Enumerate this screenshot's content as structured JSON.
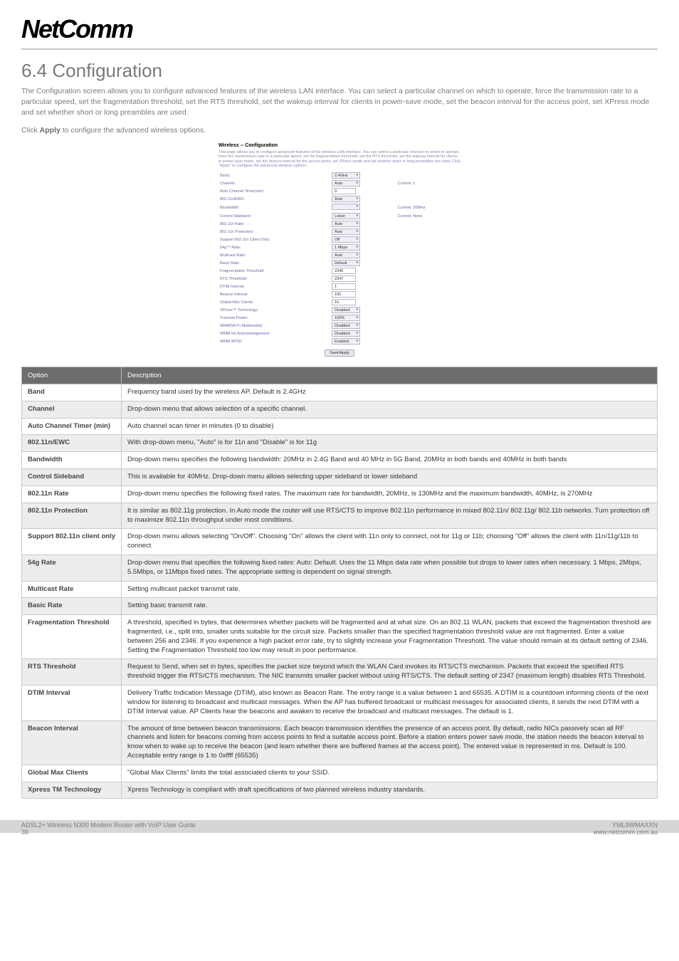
{
  "brand": "NetComm",
  "section_title": "6.4 Configuration",
  "intro": "The Configuration screen allows you to configure advanced features of the wireless LAN interface.   You can select a particular channel on which to operate, force the transmission rate to a particular speed, set the fragmentation threshold, set the RTS threshold, set the wakeup interval for clients in power-save mode, set the beacon interval for the access point, set XPress mode and set whether short or long preambles are used.",
  "click_line_pre": "Click ",
  "click_line_bold": "Apply",
  "click_line_post": " to configure the advanced wireless options.",
  "screenshot": {
    "title": "Wireless -- Configuration",
    "desc": "This page allows you to configure advanced features of the wireless LAN interface. You can select a particular channel on which to operate, force the transmission rate to a particular speed, set the fragmentation threshold, set the RTS threshold, set the wakeup interval for clients in power-save mode, set the beacon interval for the access point, set XPress mode and set whether short or long preambles are used. Click \"Apply\" to configure the advanced wireless options.",
    "rows": [
      {
        "label": "Band:",
        "ctrl": "sel",
        "value": "2.4GHz",
        "extra": ""
      },
      {
        "label": "Channel:",
        "ctrl": "sel",
        "value": "Auto",
        "extra": "Current: 1"
      },
      {
        "label": "Auto Channel Timer(min)",
        "ctrl": "inp",
        "value": "0",
        "extra": ""
      },
      {
        "label": "802.11n/EWC:",
        "ctrl": "sel",
        "value": "Auto",
        "extra": ""
      },
      {
        "label": "Bandwidth:",
        "ctrl": "sel",
        "value": "",
        "extra": "Current: 20MHz"
      },
      {
        "label": "Control Sideband:",
        "ctrl": "sel",
        "value": "Lower",
        "extra": "Current: None"
      },
      {
        "label": "802.11n Rate:",
        "ctrl": "sel",
        "value": "Auto",
        "extra": ""
      },
      {
        "label": "802.11n Protection:",
        "ctrl": "sel",
        "value": "Auto",
        "extra": ""
      },
      {
        "label": "Support 802.11n Client Only:",
        "ctrl": "sel",
        "value": "Off",
        "extra": ""
      },
      {
        "label": "54g™ Rate:",
        "ctrl": "sel",
        "value": "1 Mbps",
        "extra": ""
      },
      {
        "label": "Multicast Rate:",
        "ctrl": "sel",
        "value": "Auto",
        "extra": ""
      },
      {
        "label": "Basic Rate:",
        "ctrl": "sel",
        "value": "Default",
        "extra": ""
      },
      {
        "label": "Fragmentation Threshold:",
        "ctrl": "inp",
        "value": "2346",
        "extra": ""
      },
      {
        "label": "RTS Threshold:",
        "ctrl": "inp",
        "value": "2347",
        "extra": ""
      },
      {
        "label": "DTIM Interval:",
        "ctrl": "inp",
        "value": "1",
        "extra": ""
      },
      {
        "label": "Beacon Interval:",
        "ctrl": "inp",
        "value": "100",
        "extra": ""
      },
      {
        "label": "Global Max Clients:",
        "ctrl": "inp",
        "value": "16",
        "extra": ""
      },
      {
        "label": "XPress™ Technology:",
        "ctrl": "sel",
        "value": "Disabled",
        "extra": ""
      },
      {
        "label": "Transmit Power:",
        "ctrl": "sel",
        "value": "100%",
        "extra": ""
      },
      {
        "label": "WMM(Wi-Fi Multimedia):",
        "ctrl": "sel",
        "value": "Disabled",
        "extra": ""
      },
      {
        "label": "WMM No Acknowledgement:",
        "ctrl": "sel",
        "value": "Disabled",
        "extra": ""
      },
      {
        "label": "WMM APSD:",
        "ctrl": "sel",
        "value": "Enabled",
        "extra": ""
      }
    ],
    "button": "Save/Apply"
  },
  "table": {
    "headers": {
      "opt": "Option",
      "desc": "Description"
    },
    "rows": [
      {
        "opt": "Band",
        "desc": "Frequency band used by the wireless AP. Default is 2.4GHz",
        "alt": false
      },
      {
        "opt": "Channel",
        "desc": "Drop-down menu that allows selection of a specific channel.",
        "alt": true
      },
      {
        "opt": "Auto Channel Timer (min)",
        "desc": "Auto channel scan timer in minutes (0 to disable)",
        "alt": false
      },
      {
        "opt": "802.11n/EWC",
        "desc": "With drop-down menu, \"Auto\" is for 11n and \"Disable\" is for 11g",
        "alt": true
      },
      {
        "opt": "Bandwidth",
        "desc": "Drop-down menu specifies the following bandwidth: 20MHz in 2.4G Band and 40 MHz in 5G Band, 20MHz in both bands and 40MHz in both bands",
        "alt": false
      },
      {
        "opt": "Control Sideband",
        "desc": "This is available for 40MHz. Drop-down menu allows selecting upper sideband or lower sideband",
        "alt": true
      },
      {
        "opt": "802.11n Rate",
        "desc": "Drop-down menu specifies the following fixed rates. The maximum rate for bandwidth, 20MHz, is 130MHz and the maximum bandwidth, 40MHz, is 270MHz",
        "alt": false
      },
      {
        "opt": "802.11n Protection",
        "desc": "It is similar as 802.11g protection. In Auto mode the router will use RTS/CTS to improve 802.11n performance in mixed 802.11n/ 802.11g/ 802.11b networks. Turn protection off to maximize 802.11n throughput under most conditions.",
        "alt": true
      },
      {
        "opt": "Support 802.11n client only",
        "desc": "Drop-down menu allows selecting \"On/Off\". Choosing \"On\" allows the client with 11n only to connect, not for 11g or 11b; choosing \"Off\" allows the client with 11n/11g/11b to connect",
        "alt": false
      },
      {
        "opt": "54g Rate",
        "desc": "Drop-down menu that specifies the following fixed rates:  Auto: Default.  Uses the 11 Mbps data rate when possible but drops to lower rates when necessary.  1 Mbps, 2Mbps, 5.5Mbps, or 11Mbps fixed rates.  The appropriate setting is dependent on signal strength.",
        "alt": true
      },
      {
        "opt": "Multicast Rate",
        "desc": "Setting multicast packet transmit rate.",
        "alt": false
      },
      {
        "opt": "Basic Rate",
        "desc": "Setting basic transmit rate.",
        "alt": true
      },
      {
        "opt": "Fragmentation Threshold",
        "desc": "A threshold, specified in bytes, that determines whether packets will be fragmented and at what size.  On an 802.11 WLAN, packets that exceed the fragmentation threshold are fragmented, i.e., split into, smaller units suitable for the circuit size.  Packets smaller than the specified fragmentation threshold value are not fragmented.  Enter a value between 256 and 2346. If you experience a high packet error rate, try to slightly increase your Fragmentation Threshold.  The value should remain at its default setting of 2346.  Setting the Fragmentation Threshold too low may result in poor performance.",
        "alt": false
      },
      {
        "opt": "RTS Threshold",
        "desc": "Request to Send, when set in bytes, specifies the packet size beyond which the WLAN Card invokes its RTS/CTS mechanism.  Packets that exceed the specified RTS threshold trigger the RTS/CTS mechanism.  The NIC transmits smaller packet without using RTS/CTS.  The default setting of 2347 (maximum length) disables RTS Threshold.",
        "alt": true
      },
      {
        "opt": "DTIM Interval",
        "desc": "Delivery Traffic Indication Message (DTIM), also known as Beacon Rate.  The entry range is a value between 1 and 65535. A DTIM is a countdown informing clients of the next window for listening to broadcast and multicast messages.  When the AP has buffered broadcast or multicast messages for associated clients, it sends the next DTIM with a DTIM Interval value.  AP Clients hear the beacons and awaken to receive the broadcast and multicast messages.  The default is 1.",
        "alt": false
      },
      {
        "opt": "Beacon Interval",
        "desc": "The amount of time between beacon transmissions.  Each beacon transmission identifies the presence of an access point.  By default, radio NICs passively scan all RF channels and listen for beacons coming from access points to find a suitable access point.  Before a station enters power save mode, the station needs the beacon interval to know when to wake up to receive the beacon (and learn whether there are buffered frames at the access point).  The entered value is represented in ms. Default is 100.  Acceptable entry range is 1 to 0xffff (65535)",
        "alt": true
      },
      {
        "opt": "Global Max Clients",
        "desc": "\"Global Max Clients\" limits the total associated clients to your SSID.",
        "alt": false
      },
      {
        "opt": "Xpress TM Technology",
        "desc": "Xpress Technology is compliant with draft specifications of two planned wireless industry standards.",
        "alt": true
      }
    ]
  },
  "footer": {
    "left_line1": "ADSL2+ Wireless N300 Modem Router with VoIP User Guide",
    "left_line2": "36",
    "right_line1": "YML9WMAXXN",
    "right_line2": "www.netcomm.com.au"
  }
}
